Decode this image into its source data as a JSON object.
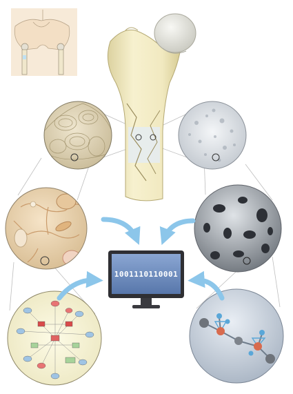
{
  "monitor": {
    "binary_text": "1001110110001"
  },
  "colors": {
    "bone": "#f3ecc4",
    "bone_shadow": "#d9cf99",
    "cartilage": "#e8e8e2",
    "arrow": "#8cc6ea",
    "monitor_frame": "#2f2f33",
    "monitor_screen": "#6f8fc0",
    "connector": "#b9b9b9"
  },
  "panels": [
    {
      "name": "skeleton-pelvis-thumbnail"
    },
    {
      "name": "femur-bone-illustration"
    },
    {
      "name": "lamellar-bone-micrograph"
    },
    {
      "name": "trabecular-bone-micrograph"
    },
    {
      "name": "osteocyte-cells-illustration"
    },
    {
      "name": "porous-bone-sem-image"
    },
    {
      "name": "gene-network-diagram"
    },
    {
      "name": "molecular-structure-model"
    }
  ]
}
